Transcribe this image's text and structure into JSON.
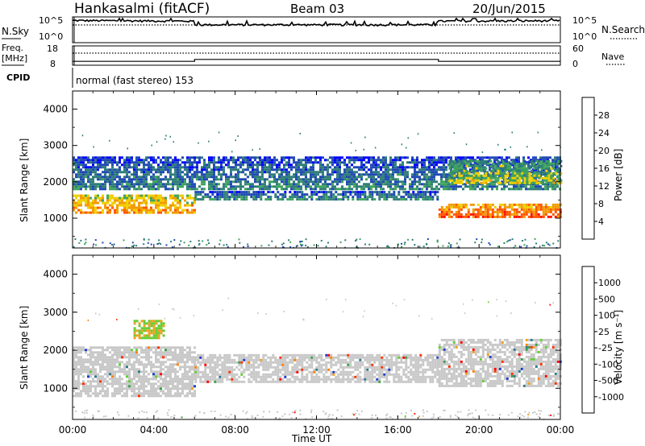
{
  "header": {
    "station": "Hankasalmi (fitACF)",
    "beam": "Beam 03",
    "date": "20/Jun/2015"
  },
  "noise_panel": {
    "left_label": "N.Sky",
    "right_label": "N.Search",
    "left_ticks": [
      "10^5",
      "10^0"
    ],
    "right_ticks": [
      "10^5",
      "10^0"
    ]
  },
  "freq_panel": {
    "left_label_1": "Freq.",
    "left_label_2": "[MHz]",
    "right_label": "Nave",
    "left_ticks": [
      "18",
      "8"
    ],
    "right_ticks": [
      "60",
      "0"
    ]
  },
  "cpid": {
    "label": "CPID",
    "mode_text": "normal (fast stereo) 153"
  },
  "time_axis": {
    "ticks": [
      "00:00",
      "04:00",
      "08:00",
      "12:00",
      "16:00",
      "20:00",
      "00:00"
    ],
    "label": "Time UT"
  },
  "power_panel": {
    "ylabel": "Slant Range [km]",
    "yticks": [
      "4000",
      "3000",
      "2000",
      "1000"
    ],
    "colorbar_label": "Power [dB]",
    "colorbar_ticks": [
      "28",
      "24",
      "20",
      "16",
      "12",
      "8",
      "4"
    ],
    "colors": [
      "#0000ff",
      "#1f49b4",
      "#2f7d78",
      "#3fa45c",
      "#f0d000",
      "#f29a00",
      "#ff5500",
      "#ff1100"
    ]
  },
  "velocity_panel": {
    "ylabel": "Slant Range [km]",
    "yticks": [
      "4000",
      "3000",
      "2000",
      "1000"
    ],
    "colorbar_label": "Velocity [m s⁻¹]",
    "colorbar_ticks": [
      "1000",
      "500",
      "100",
      "25",
      "-25",
      "-100",
      "-500",
      "-1000"
    ],
    "colors": [
      "#1e3cc8",
      "#2e7a8a",
      "#38a048",
      "#66cc33",
      "#c8c8c8",
      "#c8c8c8",
      "#f0a020",
      "#ff8000",
      "#ff3000",
      "#ff0000"
    ]
  },
  "chart_data": [
    {
      "type": "line",
      "name": "noise",
      "x_range_hours": [
        0,
        24
      ],
      "y_scale": "log",
      "ylim": [
        1,
        100000
      ],
      "series": [
        {
          "x": [
            0,
            6,
            6,
            18,
            18,
            24
          ],
          "values": [
            20000,
            15000,
            3000,
            3000,
            15000,
            18000
          ]
        }
      ]
    },
    {
      "type": "line",
      "name": "frequency",
      "x_range_hours": [
        0,
        24
      ],
      "ylim": [
        8,
        18
      ],
      "series": [
        {
          "x": [
            0,
            6,
            6,
            18,
            18,
            24
          ],
          "values": [
            10,
            10,
            11,
            11,
            10,
            10
          ]
        }
      ]
    },
    {
      "type": "heatmap",
      "name": "power",
      "xlabel": "Time UT",
      "ylabel": "Slant Range [km]",
      "x_range_hours": [
        0,
        24
      ],
      "ylim": [
        180,
        4500
      ],
      "colorbar": "Power [dB]",
      "clim": [
        0,
        30
      ],
      "regions": [
        {
          "t": [
            0.0,
            6.0
          ],
          "r": [
            1180,
            1650
          ],
          "val": 20
        },
        {
          "t": [
            6.0,
            18.0
          ],
          "r": [
            1500,
            1750
          ],
          "val": 9
        },
        {
          "t": [
            18.0,
            24.0
          ],
          "r": [
            1050,
            1400
          ],
          "val": 24
        },
        {
          "t": [
            0.0,
            24.0
          ],
          "r": [
            1800,
            2700
          ],
          "val": 8
        },
        {
          "t": [
            18.5,
            24.0
          ],
          "r": [
            2000,
            2600
          ],
          "val": 14
        }
      ]
    },
    {
      "type": "heatmap",
      "name": "velocity",
      "xlabel": "Time UT",
      "ylabel": "Slant Range [km]",
      "x_range_hours": [
        0,
        24
      ],
      "ylim": [
        180,
        4500
      ],
      "colorbar": "Velocity [m s⁻¹]",
      "clim": [
        -1000,
        1000
      ],
      "regions": [
        {
          "t": [
            0.0,
            6.0
          ],
          "r": [
            800,
            2100
          ],
          "val": 0
        },
        {
          "t": [
            6.0,
            18.0
          ],
          "r": [
            1200,
            1900
          ],
          "val": 0
        },
        {
          "t": [
            18.0,
            24.0
          ],
          "r": [
            1050,
            2300
          ],
          "val": 0
        },
        {
          "t": [
            3.0,
            4.5
          ],
          "r": [
            2300,
            2800
          ],
          "val": 150
        }
      ]
    }
  ]
}
